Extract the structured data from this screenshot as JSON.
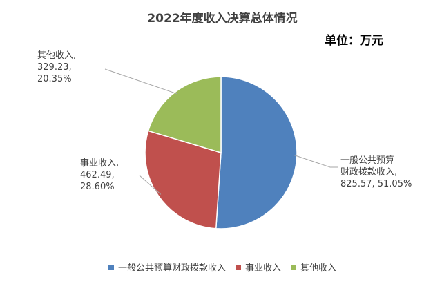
{
  "chart_data": {
    "type": "pie",
    "title": "2022年度收入决算总体情况",
    "unit_label": "单位：万元",
    "slices": [
      {
        "name": "一般公共预算财政拨款收入",
        "value": 825.57,
        "percent": 51.05,
        "color": "#4f81bd",
        "label_lines": [
          "一般公共预算",
          "财政拨款收入,",
          "825.57, 51.05%"
        ]
      },
      {
        "name": "事业收入",
        "value": 462.49,
        "percent": 28.6,
        "color": "#c0504d",
        "label_lines": [
          "事业收入,",
          "462.49,",
          "28.60%"
        ]
      },
      {
        "name": "其他收入",
        "value": 329.23,
        "percent": 20.35,
        "color": "#9bbb59",
        "label_lines": [
          "其他收入,",
          "329.23,",
          "20.35%"
        ]
      }
    ],
    "legend_position": "bottom"
  }
}
